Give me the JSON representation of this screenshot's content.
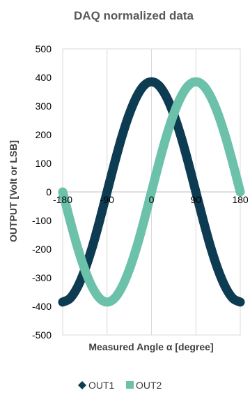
{
  "chart_data": {
    "type": "line",
    "title": "DAQ normalized data",
    "xlabel": "Measured Angle α [degree]",
    "ylabel": "OUTPUT [Volt or LSB]",
    "xlim": [
      -180,
      180
    ],
    "ylim": [
      -500,
      500
    ],
    "x_ticks": [
      -180,
      -90,
      0,
      90,
      180
    ],
    "y_ticks": [
      500,
      400,
      300,
      200,
      100,
      0,
      -100,
      -200,
      -300,
      -400,
      -500
    ],
    "grid": "vertical",
    "legend_position": "bottom",
    "x": [
      -180,
      -165,
      -150,
      -135,
      -120,
      -105,
      -90,
      -75,
      -60,
      -45,
      -30,
      -15,
      0,
      15,
      30,
      45,
      60,
      75,
      90,
      105,
      120,
      135,
      150,
      165,
      180
    ],
    "series": [
      {
        "name": "OUT1",
        "color": "#0d3b52",
        "marker": "diamond",
        "values": [
          -385,
          -372,
          -333,
          -272,
          -193,
          -100,
          0,
          100,
          193,
          272,
          333,
          372,
          385,
          372,
          333,
          272,
          193,
          100,
          0,
          -100,
          -193,
          -272,
          -333,
          -372,
          -385
        ]
      },
      {
        "name": "OUT2",
        "color": "#6cc1aa",
        "marker": "square",
        "values": [
          0,
          -100,
          -193,
          -272,
          -333,
          -372,
          -385,
          -372,
          -333,
          -272,
          -193,
          -100,
          0,
          100,
          193,
          272,
          333,
          372,
          385,
          372,
          333,
          272,
          193,
          100,
          0
        ]
      }
    ]
  }
}
